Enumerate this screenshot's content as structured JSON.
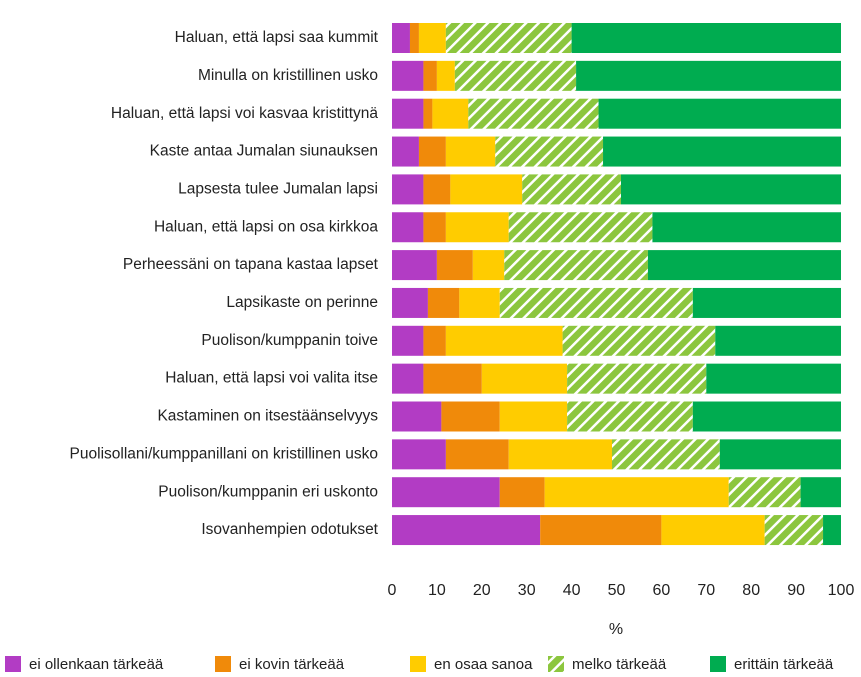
{
  "chart_data": {
    "type": "stacked-bar-horizontal",
    "categories": [
      "Haluan, että lapsi saa kummit",
      "Minulla on kristillinen usko",
      "Haluan, että lapsi voi kasvaa kristittynä",
      "Kaste antaa Jumalan siunauksen",
      "Lapsesta tulee Jumalan lapsi",
      "Haluan, että lapsi on osa kirkkoa",
      "Perheessäni on tapana kastaa lapset",
      "Lapsikaste on perinne",
      "Puolison/kumppanin toive",
      "Haluan, että lapsi voi valita itse",
      "Kastaminen on itsestäänselvyys",
      "Puolisollani/kumppanillani on kristillinen usko",
      "Puolison/kumppanin eri uskonto",
      "Isovanhempien odotukset"
    ],
    "series": [
      {
        "name": "ei ollenkaan tärkeää",
        "color": "#b23cc4",
        "values": [
          4,
          7,
          7,
          6,
          7,
          7,
          10,
          8,
          7,
          7,
          11,
          12,
          24,
          33
        ]
      },
      {
        "name": "ei kovin tärkeää",
        "color": "#f08a0a",
        "values": [
          2,
          3,
          2,
          6,
          6,
          5,
          8,
          7,
          5,
          13,
          13,
          14,
          10,
          27
        ]
      },
      {
        "name": "en osaa sanoa",
        "color": "#ffcc00",
        "values": [
          6,
          4,
          8,
          11,
          16,
          14,
          7,
          9,
          26,
          19,
          15,
          23,
          41,
          23
        ]
      },
      {
        "name": "melko tärkeää",
        "color": "#8cc63e",
        "hatch": true,
        "values": [
          28,
          27,
          29,
          24,
          22,
          32,
          32,
          43,
          34,
          31,
          28,
          24,
          16,
          13
        ]
      },
      {
        "name": "erittäin tärkeää",
        "color": "#00ac50",
        "values": [
          60,
          59,
          54,
          53,
          49,
          42,
          43,
          33,
          28,
          30,
          33,
          27,
          9,
          4
        ]
      }
    ],
    "xlabel": "%",
    "xlim": [
      0,
      100
    ],
    "xticks": [
      0,
      10,
      20,
      30,
      40,
      50,
      60,
      70,
      80,
      90,
      100
    ],
    "grid": false,
    "legend": "bottom"
  }
}
